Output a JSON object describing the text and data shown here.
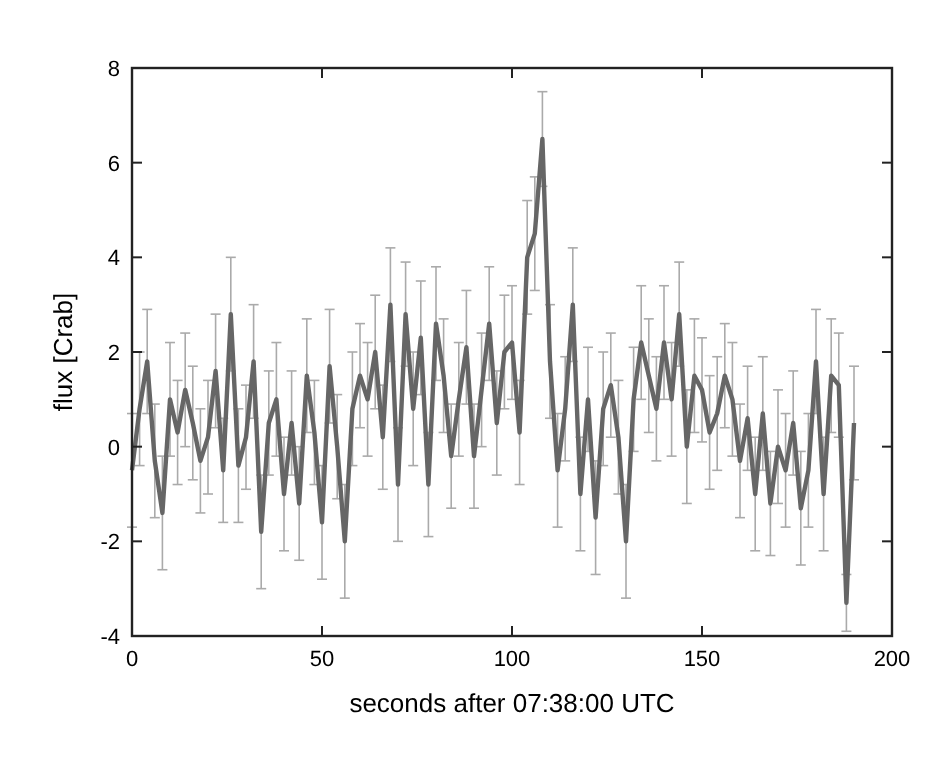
{
  "chart_data": {
    "type": "line",
    "xlabel": "seconds after 07:38:00 UTC",
    "ylabel": "flux [Crab]",
    "xlim": [
      0,
      200
    ],
    "xticks": [
      0,
      50,
      100,
      150,
      200
    ],
    "ylim": [
      -4,
      8
    ],
    "yticks": [
      -4,
      -2,
      0,
      2,
      4,
      6,
      8
    ],
    "grid": false,
    "marker": "none",
    "line_style": "solid",
    "x": [
      0,
      2,
      4,
      6,
      8,
      10,
      12,
      14,
      16,
      18,
      20,
      22,
      24,
      26,
      28,
      30,
      32,
      34,
      36,
      38,
      40,
      42,
      44,
      46,
      48,
      50,
      52,
      54,
      56,
      58,
      60,
      62,
      64,
      66,
      68,
      70,
      72,
      74,
      76,
      78,
      80,
      82,
      84,
      86,
      88,
      90,
      92,
      94,
      96,
      98,
      100,
      102,
      104,
      106,
      108,
      110,
      112,
      114,
      116,
      118,
      120,
      122,
      124,
      126,
      128,
      130,
      132,
      134,
      136,
      138,
      140,
      142,
      144,
      146,
      148,
      150,
      152,
      154,
      156,
      158,
      160,
      162,
      164,
      166,
      168,
      170,
      172,
      174,
      176,
      178,
      180,
      182,
      184,
      186,
      188,
      190
    ],
    "series": [
      {
        "color": "#666666",
        "values": [
          -0.5,
          0.8,
          1.8,
          -0.3,
          -1.4,
          1.0,
          0.3,
          1.2,
          0.5,
          -0.3,
          0.2,
          1.6,
          -0.5,
          2.8,
          -0.4,
          0.2,
          1.8,
          -1.8,
          0.5,
          1.0,
          -1.0,
          0.5,
          -1.2,
          1.5,
          0.3,
          -1.6,
          1.7,
          0.0,
          -2.0,
          0.8,
          1.5,
          1.0,
          2.0,
          0.2,
          3.0,
          -0.8,
          2.8,
          0.8,
          2.3,
          -0.8,
          2.6,
          1.5,
          -0.2,
          1.0,
          2.1,
          -0.2,
          1.2,
          2.6,
          0.5,
          2.0,
          2.2,
          0.3,
          4.0,
          4.5,
          6.5,
          1.8,
          -0.5,
          0.8,
          3.0,
          -1.0,
          1.0,
          -1.5,
          0.8,
          1.3,
          0.2,
          -2.0,
          1.0,
          2.2,
          1.5,
          0.8,
          2.2,
          1.0,
          2.8,
          0.0,
          1.5,
          1.2,
          0.3,
          0.7,
          1.5,
          1.0,
          -0.3,
          0.6,
          -1.0,
          0.7,
          -1.2,
          0.0,
          -0.5,
          0.5,
          -1.3,
          -0.5,
          1.8,
          -1.0,
          1.5,
          1.3,
          -3.3,
          0.5
        ],
        "errors": [
          1.2,
          1.2,
          1.1,
          1.2,
          1.2,
          1.2,
          1.1,
          1.2,
          1.2,
          1.1,
          1.2,
          1.2,
          1.1,
          1.2,
          1.2,
          1.1,
          1.2,
          1.2,
          1.1,
          1.2,
          1.2,
          1.1,
          1.2,
          1.2,
          1.1,
          1.2,
          1.2,
          1.1,
          1.2,
          1.2,
          1.1,
          1.2,
          1.2,
          1.1,
          1.2,
          1.2,
          1.1,
          1.2,
          1.2,
          1.1,
          1.2,
          1.2,
          1.1,
          1.2,
          1.2,
          1.1,
          1.2,
          1.2,
          1.1,
          1.2,
          1.2,
          1.1,
          1.2,
          1.2,
          1.0,
          1.2,
          1.2,
          1.1,
          1.2,
          1.2,
          1.1,
          1.2,
          1.2,
          1.1,
          1.2,
          1.2,
          1.1,
          1.2,
          1.2,
          1.1,
          1.2,
          1.2,
          1.1,
          1.2,
          1.2,
          1.1,
          1.2,
          1.2,
          1.1,
          1.2,
          1.2,
          1.1,
          1.2,
          1.2,
          1.1,
          1.2,
          1.2,
          1.1,
          1.2,
          1.2,
          1.1,
          1.2,
          1.2,
          1.1,
          0.6,
          1.2
        ]
      }
    ]
  }
}
